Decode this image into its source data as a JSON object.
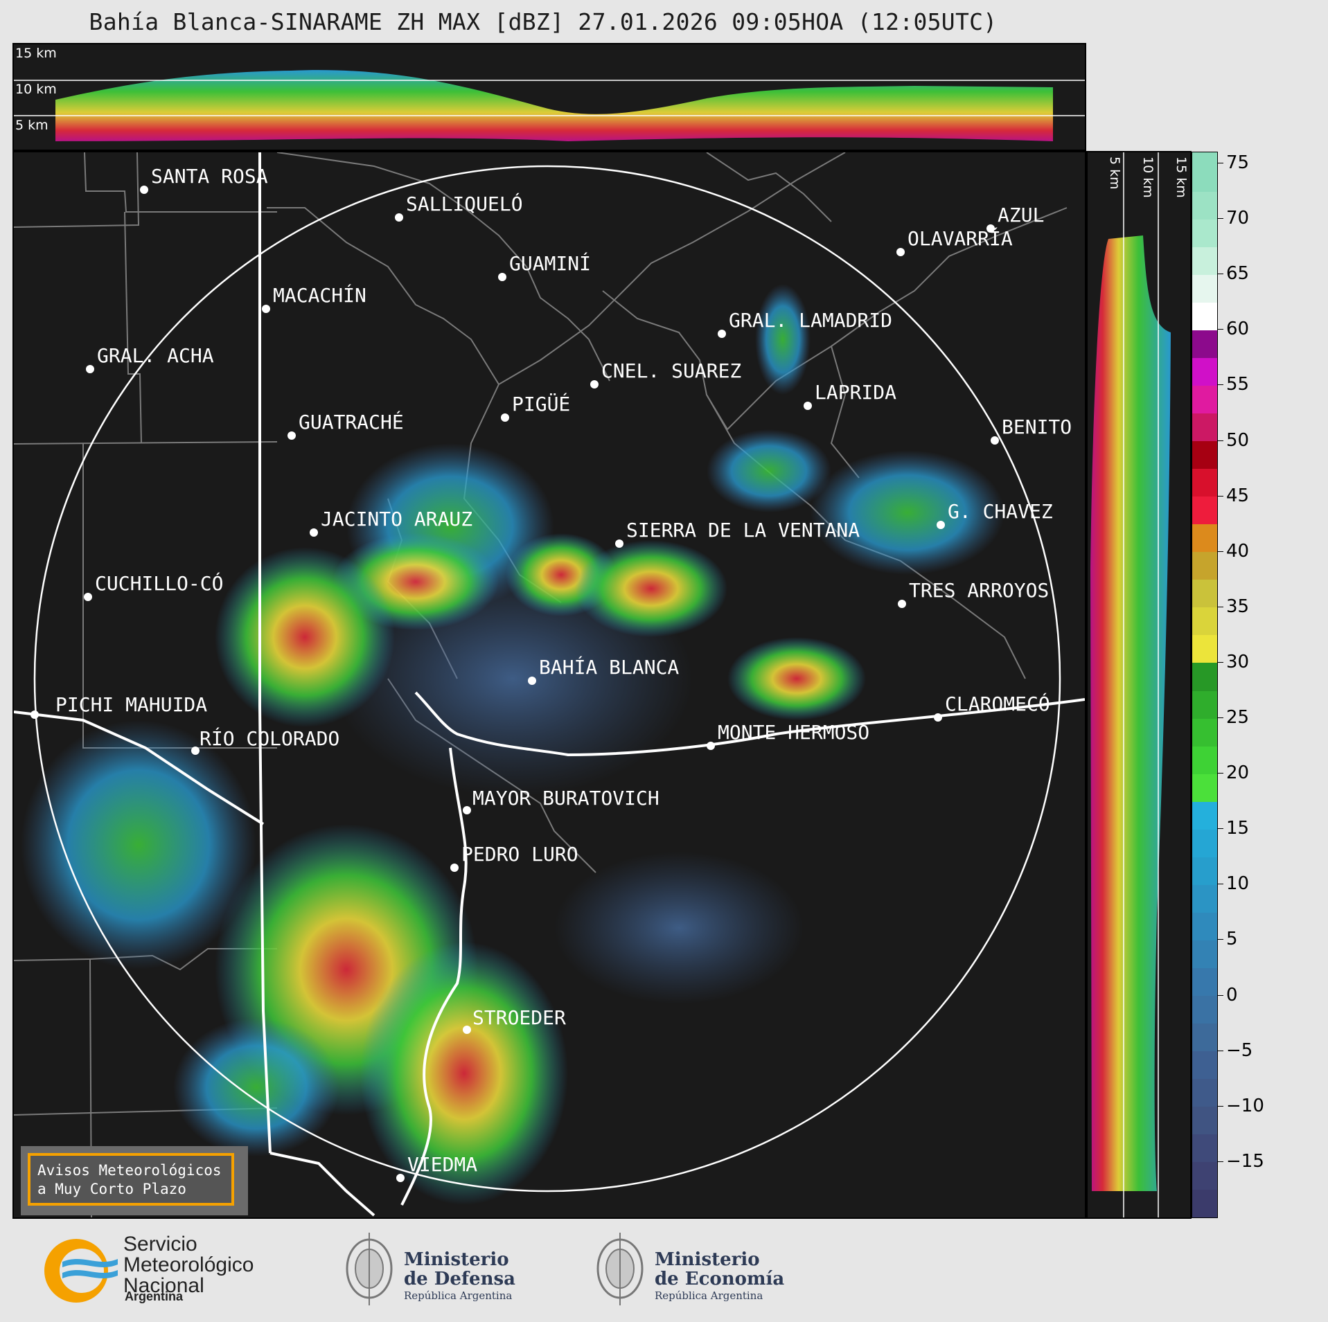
{
  "title": "Bahía Blanca-SINARAME ZH MAX [dBZ] 27.01.2026 09:05HOA (12:05UTC)",
  "altitude_labels": [
    "15 km",
    "10 km",
    "5 km"
  ],
  "side_altitude_labels": [
    "5 km",
    "10 km",
    "15 km"
  ],
  "colorbar": {
    "ticks": [
      "75",
      "70",
      "65",
      "60",
      "55",
      "50",
      "45",
      "40",
      "35",
      "30",
      "25",
      "20",
      "15",
      "10",
      "5",
      "0",
      "−5",
      "−10",
      "−15"
    ],
    "min": -20,
    "max": 76
  },
  "cities": [
    {
      "name": "SANTA ROSA"
    },
    {
      "name": "SALLIQUELÓ"
    },
    {
      "name": "AZUL"
    },
    {
      "name": "OLAVARRÍA"
    },
    {
      "name": "GUAMINÍ"
    },
    {
      "name": "MACACHÍN"
    },
    {
      "name": "GRAL. LAMADRID"
    },
    {
      "name": "GRAL. ACHA"
    },
    {
      "name": "CNEL. SUAREZ"
    },
    {
      "name": "LAPRIDA"
    },
    {
      "name": "PIGÜÉ"
    },
    {
      "name": "GUATRACHÉ"
    },
    {
      "name": "BENITO"
    },
    {
      "name": "G. CHAVEZ"
    },
    {
      "name": "JACINTO ARAUZ"
    },
    {
      "name": "SIERRA DE LA VENTANA"
    },
    {
      "name": "CUCHILLO-CÓ"
    },
    {
      "name": "TRES ARROYOS"
    },
    {
      "name": "BAHÍA BLANCA"
    },
    {
      "name": "PICHI MAHUIDA"
    },
    {
      "name": "CLAROMECÓ"
    },
    {
      "name": "MONTE HERMOSO"
    },
    {
      "name": "RÍO COLORADO"
    },
    {
      "name": "MAYOR BURATOVICH"
    },
    {
      "name": "PEDRO LURO"
    },
    {
      "name": "STROEDER"
    },
    {
      "name": "VIEDMA"
    }
  ],
  "badge": {
    "line1": "Avisos Meteorológicos",
    "line2": "a Muy Corto Plazo"
  },
  "logos": {
    "smn_line1": "Servicio",
    "smn_line2": "Meteorológico",
    "smn_line3": "Nacional",
    "smn_sub": "Argentina",
    "defensa_line1": "Ministerio",
    "defensa_line2": "de Defensa",
    "defensa_sub": "República Argentina",
    "economia_line1": "Ministerio",
    "economia_line2": "de Economía",
    "economia_sub": "República Argentina"
  }
}
